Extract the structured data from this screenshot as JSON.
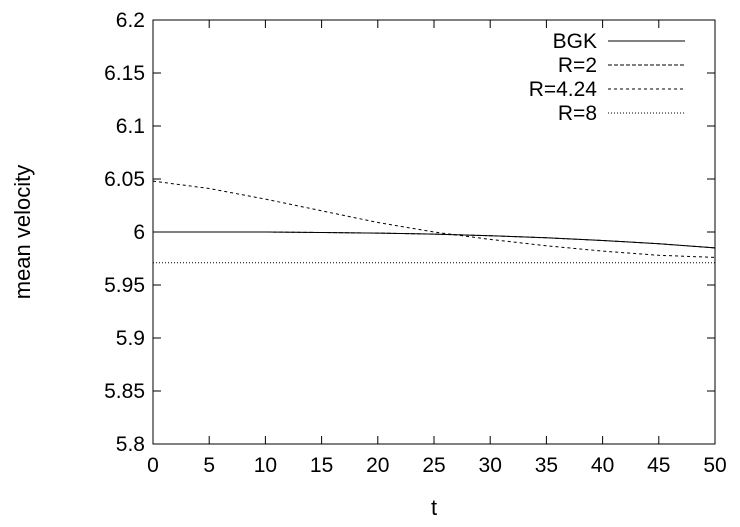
{
  "chart_data": {
    "type": "line",
    "title": "",
    "xlabel": "t",
    "ylabel": "mean velocity",
    "xlim": [
      0,
      50
    ],
    "ylim": [
      5.8,
      6.2
    ],
    "x_ticks": [
      0,
      5,
      10,
      15,
      20,
      25,
      30,
      35,
      40,
      45,
      50
    ],
    "x_tick_labels": [
      "0",
      "5",
      "10",
      "15",
      "20",
      "25",
      "30",
      "35",
      "40",
      "45",
      "50"
    ],
    "y_ticks": [
      5.8,
      5.85,
      5.9,
      5.95,
      6.0,
      6.05,
      6.1,
      6.15,
      6.2
    ],
    "y_tick_labels": [
      "5.8",
      "5.85",
      "5.9",
      "5.95",
      "6",
      "6.05",
      "6.1",
      "6.15",
      "6.2"
    ],
    "grid": false,
    "legend_position": "top-right",
    "series": [
      {
        "name": "BGK",
        "style": "solid",
        "x": [
          0,
          5,
          10,
          15,
          20,
          25,
          30,
          35,
          40,
          45,
          50
        ],
        "y": [
          6.0,
          6.0,
          6.0,
          5.9995,
          5.999,
          5.998,
          5.9965,
          5.9945,
          5.992,
          5.989,
          5.985
        ]
      },
      {
        "name": "R=2",
        "style": "dashed",
        "x": [
          0,
          5,
          10,
          15,
          20,
          25,
          30,
          35,
          40,
          45,
          50
        ],
        "y": [
          6.0,
          6.0,
          6.0,
          5.9995,
          5.999,
          5.998,
          5.9965,
          5.9945,
          5.992,
          5.989,
          5.985
        ]
      },
      {
        "name": "R=4.24",
        "style": "short-dashed",
        "x": [
          0,
          5,
          10,
          15,
          20,
          25,
          30,
          35,
          40,
          45,
          50
        ],
        "y": [
          6.048,
          6.041,
          6.031,
          6.02,
          6.009,
          6.0,
          5.993,
          5.987,
          5.982,
          5.978,
          5.976
        ]
      },
      {
        "name": "R=8",
        "style": "dotted",
        "x": [
          0,
          5,
          10,
          15,
          20,
          25,
          30,
          35,
          40,
          45,
          50
        ],
        "y": [
          5.971,
          5.971,
          5.971,
          5.971,
          5.971,
          5.971,
          5.971,
          5.971,
          5.971,
          5.971,
          5.971
        ]
      }
    ]
  }
}
